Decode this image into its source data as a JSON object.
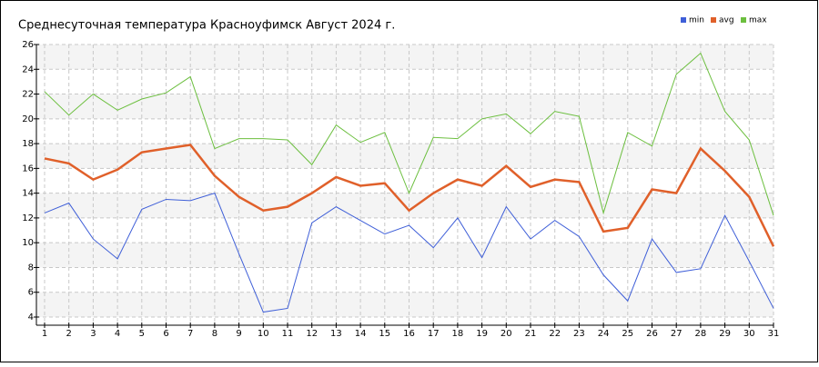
{
  "chart_data": {
    "type": "line",
    "title": "Среднесуточная температура Красноуфимск  Август 2024 г.",
    "x": [
      1,
      2,
      3,
      4,
      5,
      6,
      7,
      8,
      9,
      10,
      11,
      12,
      13,
      14,
      15,
      16,
      17,
      18,
      19,
      20,
      21,
      22,
      23,
      24,
      25,
      26,
      27,
      28,
      29,
      30,
      31
    ],
    "xlim": [
      1,
      31
    ],
    "xticks": [
      1,
      2,
      3,
      4,
      5,
      6,
      7,
      8,
      9,
      10,
      11,
      12,
      13,
      14,
      15,
      16,
      17,
      18,
      19,
      20,
      21,
      22,
      23,
      24,
      25,
      26,
      27,
      28,
      29,
      30,
      31
    ],
    "ylim": [
      4,
      26
    ],
    "yticks": [
      4,
      6,
      8,
      10,
      12,
      14,
      16,
      18,
      20,
      22,
      24,
      26
    ],
    "grid": true,
    "legend": "top-right",
    "series": [
      {
        "name": "min",
        "color": "#3f5fd8",
        "values": [
          12.4,
          13.2,
          10.3,
          8.7,
          12.7,
          13.5,
          13.4,
          14.0,
          9.1,
          4.4,
          4.7,
          11.6,
          12.9,
          11.8,
          10.7,
          11.4,
          9.6,
          12.0,
          8.8,
          12.9,
          10.3,
          11.8,
          10.5,
          7.4,
          5.3,
          10.3,
          7.6,
          7.9,
          12.2,
          8.5,
          4.7
        ]
      },
      {
        "name": "avg",
        "color": "#e0602a",
        "values": [
          16.8,
          16.4,
          15.1,
          15.9,
          17.3,
          17.6,
          17.9,
          15.4,
          13.7,
          12.6,
          12.9,
          14.0,
          15.3,
          14.6,
          14.8,
          12.6,
          14.0,
          15.1,
          14.6,
          16.2,
          14.5,
          15.1,
          14.9,
          10.9,
          11.2,
          14.3,
          14.0,
          17.6,
          15.8,
          13.7,
          9.7
        ]
      },
      {
        "name": "max",
        "color": "#6cbf3f",
        "values": [
          22.2,
          20.3,
          22.0,
          20.7,
          21.6,
          22.1,
          23.4,
          17.6,
          18.4,
          18.4,
          18.3,
          16.3,
          19.5,
          18.1,
          18.9,
          14.0,
          18.5,
          18.4,
          20.0,
          20.4,
          18.8,
          20.6,
          20.2,
          12.4,
          18.9,
          17.8,
          23.6,
          25.3,
          20.6,
          18.3,
          12.2
        ]
      }
    ]
  }
}
